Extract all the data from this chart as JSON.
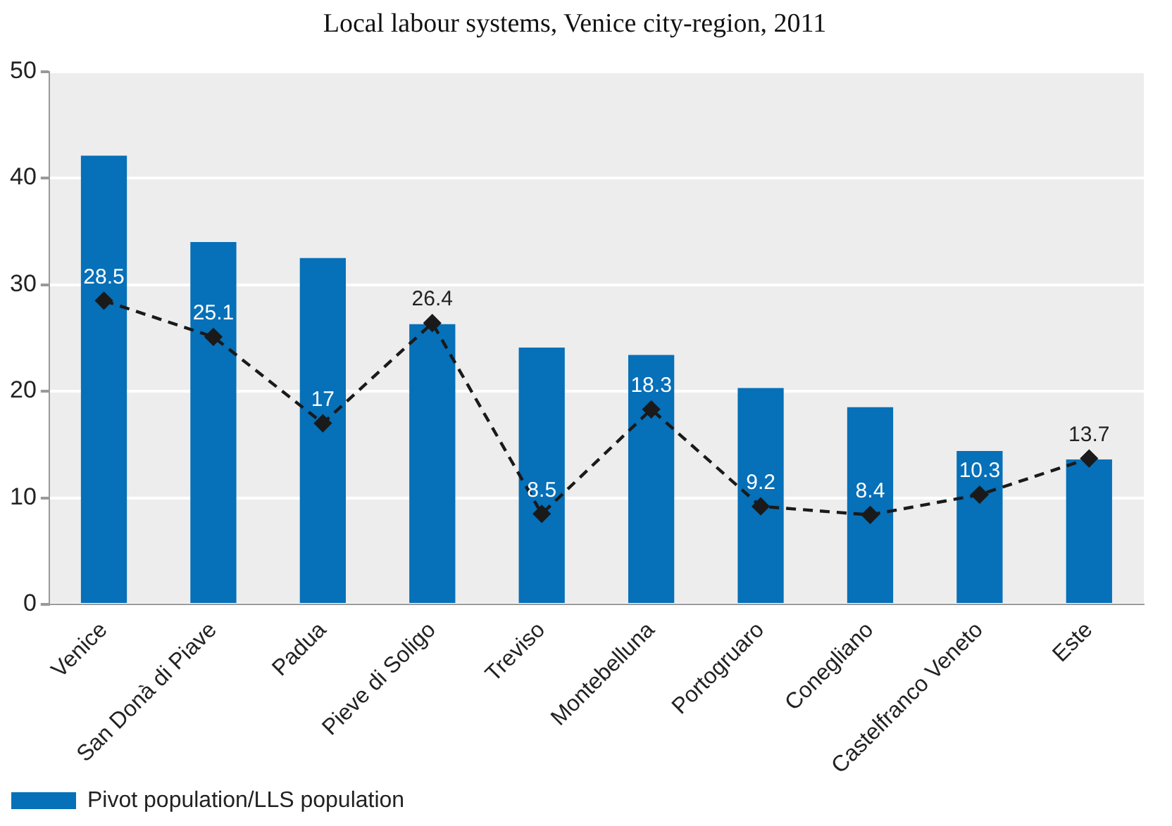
{
  "chart_data": {
    "type": "bar",
    "title": "Local labour systems, Venice city-region, 2011",
    "categories": [
      "Venice",
      "San Donà di Piave",
      "Padua",
      "Pieve di Soligo",
      "Treviso",
      "Montebelluna",
      "Portogruaro",
      "Conegliano",
      "Castelfranco Veneto",
      "Este"
    ],
    "series": [
      {
        "name": "Pivot population/LLS population",
        "color": "#0670b8",
        "values": [
          42.1,
          34.0,
          32.5,
          26.3,
          24.1,
          23.4,
          20.3,
          18.5,
          14.4,
          13.6
        ]
      },
      {
        "type": "line",
        "color": "#1a1a1a",
        "marker": "diamond",
        "line_style": "dashed",
        "values": [
          28.5,
          25.1,
          17,
          26.4,
          8.5,
          18.3,
          9.2,
          8.4,
          10.3,
          13.7
        ],
        "value_labels": [
          "28.5",
          "25.1",
          "17",
          "26.4",
          "8.5",
          "18.3",
          "9.2",
          "8.4",
          "10.3",
          "13.7"
        ]
      }
    ],
    "ylim": [
      0,
      50
    ],
    "yticks": [
      0,
      10,
      20,
      30,
      40,
      50
    ],
    "grid": "y",
    "legend": "bottom"
  }
}
